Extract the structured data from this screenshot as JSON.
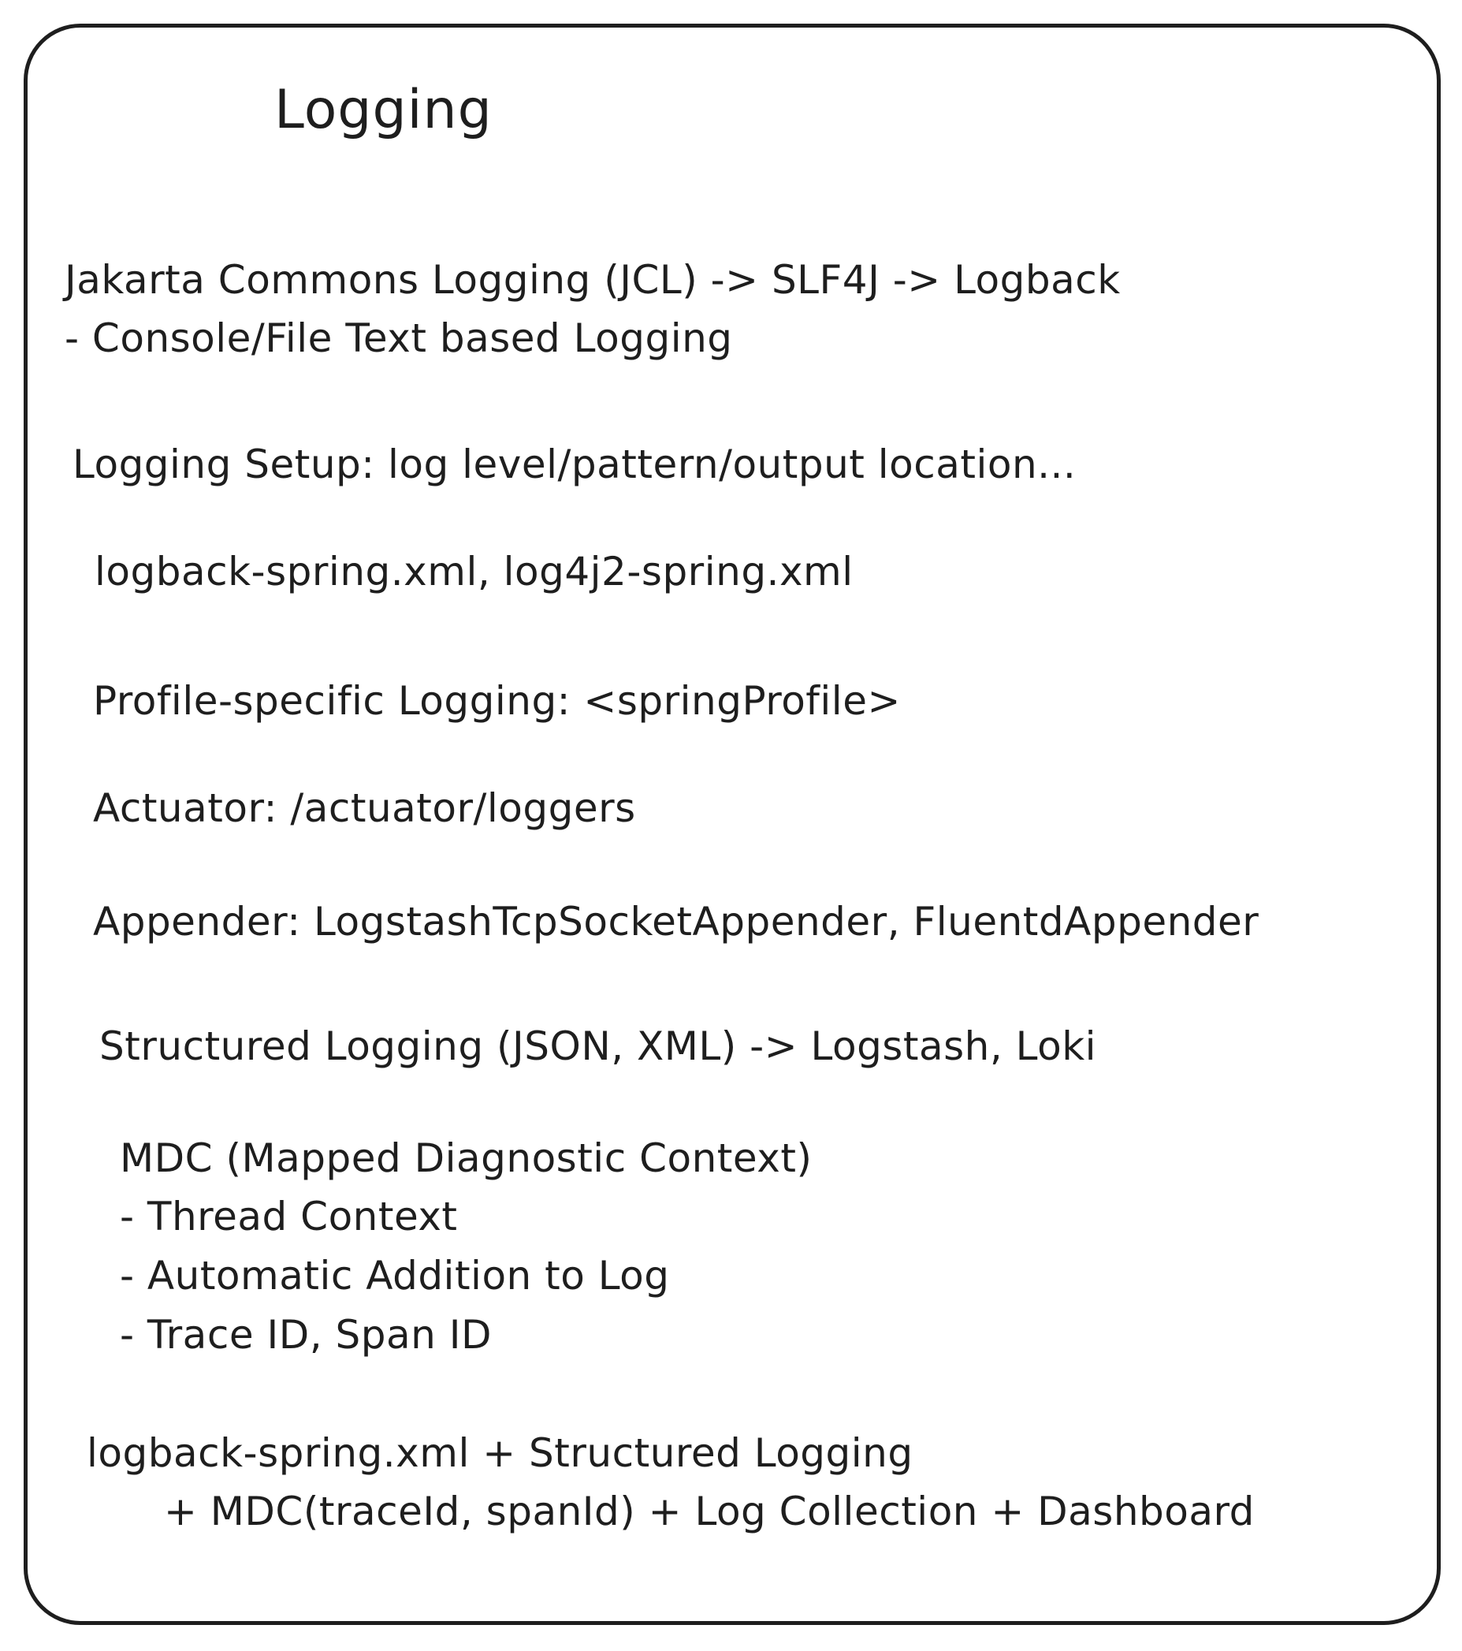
{
  "title": "Logging",
  "blocks": {
    "jcl_chain": {
      "line1": "Jakarta Commons Logging (JCL) -> SLF4J -> Logback",
      "line2": "- Console/File Text based Logging"
    },
    "setup": "Logging Setup: log level/pattern/output location...",
    "config_files": "logback-spring.xml, log4j2-spring.xml",
    "profile": "Profile-specific Logging: <springProfile>",
    "actuator": "Actuator: /actuator/loggers",
    "appender": "Appender: LogstashTcpSocketAppender, FluentdAppender",
    "structured": "Structured Logging (JSON, XML) -> Logstash, Loki",
    "mdc": {
      "line1": "MDC (Mapped Diagnostic Context)",
      "line2": "- Thread Context",
      "line3": "- Automatic Addition to Log",
      "line4": "- Trace ID, Span ID"
    },
    "summary": {
      "line1": "logback-spring.xml + Structured Logging",
      "line2": "+ MDC(traceId, spanId) + Log Collection + Dashboard"
    }
  },
  "colors": {
    "stroke": "#1e1e1e",
    "background": "#ffffff"
  }
}
